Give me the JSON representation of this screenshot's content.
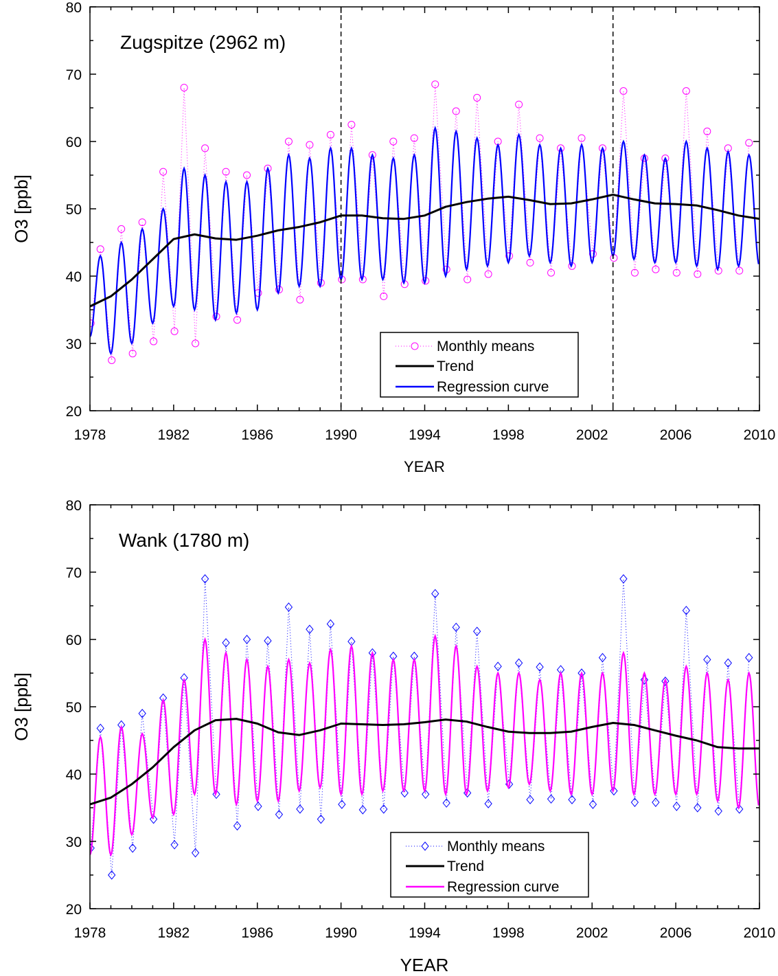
{
  "chart_data": [
    {
      "type": "line",
      "title": "Zugspitze (2962 m)",
      "xlabel": "YEAR",
      "ylabel": "O3 [ppb]",
      "xlim": [
        1978,
        2010
      ],
      "ylim": [
        20,
        80
      ],
      "xticks": [
        "1978",
        "1982",
        "1986",
        "1990",
        "1994",
        "1998",
        "2002",
        "2006",
        "2010"
      ],
      "yticks": [
        "20",
        "30",
        "40",
        "50",
        "60",
        "70",
        "80"
      ],
      "grid": false,
      "legend_placement": "bottom-center",
      "vertical_dashed_lines": [
        1990,
        2003
      ],
      "colors": {
        "monthly_means": "#ff00ff",
        "trend": "#000000",
        "regression": "#0000ff"
      },
      "legend": [
        "Monthly means",
        "Trend",
        "Regression curve"
      ],
      "years": [
        1978,
        1979,
        1980,
        1981,
        1982,
        1983,
        1984,
        1985,
        1986,
        1987,
        1988,
        1989,
        1990,
        1991,
        1992,
        1993,
        1994,
        1995,
        1996,
        1997,
        1998,
        1999,
        2000,
        2001,
        2002,
        2003,
        2004,
        2005,
        2006,
        2007,
        2008,
        2009
      ],
      "trend": {
        "x": [
          1978,
          1979,
          1980,
          1981,
          1982,
          1983,
          1984,
          1985,
          1986,
          1987,
          1988,
          1989,
          1990,
          1991,
          1992,
          1993,
          1994,
          1995,
          1996,
          1997,
          1998,
          1999,
          2000,
          2001,
          2002,
          2003,
          2004,
          2005,
          2006,
          2007,
          2008,
          2009,
          2010
        ],
        "y": [
          35.5,
          37,
          39.5,
          42.5,
          45.5,
          46.2,
          45.6,
          45.4,
          46,
          46.8,
          47.3,
          48,
          49,
          49,
          48.6,
          48.5,
          49,
          50.3,
          51,
          51.5,
          51.8,
          51.3,
          50.7,
          50.8,
          51.4,
          52.1,
          51.4,
          50.8,
          50.7,
          50.5,
          49.8,
          49,
          48.5
        ]
      },
      "regression_annual_max": [
        43,
        45,
        47,
        50,
        56,
        55,
        54,
        54,
        56,
        58,
        57.5,
        59,
        59,
        58,
        57.5,
        58,
        62,
        61.5,
        60.5,
        59.5,
        61,
        59.5,
        59,
        59.5,
        59,
        60,
        58,
        57.5,
        60,
        59,
        58.5,
        58
      ],
      "regression_annual_min": [
        31,
        28.5,
        30,
        33,
        35.5,
        35,
        33.5,
        34.5,
        35,
        37.5,
        38.5,
        38.5,
        39.5,
        39.5,
        39.5,
        39,
        39,
        40,
        41,
        41.5,
        42,
        43,
        42,
        41.5,
        42,
        43,
        42.5,
        42,
        42,
        41.5,
        41,
        41.5
      ],
      "monthly_means_annual_max": [
        44,
        47,
        48,
        55.5,
        68,
        59,
        55.5,
        55,
        56,
        60,
        59.5,
        61,
        62.5,
        58,
        60,
        60.5,
        68.5,
        64.5,
        66.5,
        60,
        65.5,
        60.5,
        59,
        60.5,
        59,
        67.5,
        57.5,
        57.5,
        67.5,
        61.5,
        59,
        59.8
      ],
      "monthly_means_annual_min": [
        33,
        27.5,
        28.5,
        30.3,
        31.8,
        30,
        34,
        33.5,
        37.5,
        38,
        36.5,
        39,
        39.5,
        39.5,
        37,
        38.8,
        39.3,
        41,
        39.5,
        40.3,
        43,
        42,
        40.5,
        41.5,
        43.3,
        42.7,
        40.5,
        41,
        40.5,
        40.3,
        40.8,
        40.8
      ]
    },
    {
      "type": "line",
      "title": "Wank (1780 m)",
      "xlabel": "YEAR",
      "ylabel": "O3 [ppb]",
      "xlim": [
        1978,
        2010
      ],
      "ylim": [
        20,
        80
      ],
      "xticks": [
        "1978",
        "1982",
        "1986",
        "1990",
        "1994",
        "1998",
        "2002",
        "2006",
        "2010"
      ],
      "yticks": [
        "20",
        "30",
        "40",
        "50",
        "60",
        "70",
        "80"
      ],
      "grid": false,
      "legend_placement": "bottom-center",
      "vertical_dashed_lines": [],
      "colors": {
        "monthly_means": "#0000ff",
        "trend": "#000000",
        "regression": "#ff00ff"
      },
      "legend": [
        "Monthly means",
        "Trend",
        "Regression curve"
      ],
      "years": [
        1978,
        1979,
        1980,
        1981,
        1982,
        1983,
        1984,
        1985,
        1986,
        1987,
        1988,
        1989,
        1990,
        1991,
        1992,
        1993,
        1994,
        1995,
        1996,
        1997,
        1998,
        1999,
        2000,
        2001,
        2002,
        2003,
        2004,
        2005,
        2006,
        2007,
        2008,
        2009
      ],
      "trend": {
        "x": [
          1978,
          1979,
          1980,
          1981,
          1982,
          1983,
          1984,
          1985,
          1986,
          1987,
          1988,
          1989,
          1990,
          1991,
          1992,
          1993,
          1994,
          1995,
          1996,
          1997,
          1998,
          1999,
          2000,
          2001,
          2002,
          2003,
          2004,
          2005,
          2006,
          2007,
          2008,
          2009,
          2010
        ],
        "y": [
          35.5,
          36.5,
          38.5,
          41,
          44,
          46.5,
          48,
          48.2,
          47.5,
          46.2,
          45.8,
          46.5,
          47.5,
          47.4,
          47.3,
          47.4,
          47.7,
          48.1,
          47.8,
          47,
          46.3,
          46.1,
          46.1,
          46.3,
          47,
          47.6,
          47.3,
          46.5,
          45.7,
          45,
          44,
          43.8,
          43.8
        ]
      },
      "regression_annual_max": [
        45.5,
        47,
        46,
        51,
        54,
        60,
        58,
        57,
        56,
        57,
        56.5,
        58.5,
        59,
        58,
        57,
        57,
        60.5,
        59,
        56,
        55,
        55,
        54,
        55,
        55,
        55,
        58,
        55,
        54,
        56,
        55,
        54,
        55
      ],
      "regression_annual_min": [
        28,
        28,
        31,
        33.5,
        34,
        37,
        37,
        35.5,
        36,
        36,
        37.5,
        38,
        37,
        37,
        37.5,
        37.5,
        37.5,
        37,
        37,
        37.5,
        38,
        38.5,
        37.5,
        37,
        37,
        37.5,
        37,
        37,
        37,
        37,
        36,
        35
      ],
      "monthly_means_annual_max": [
        46.8,
        47.3,
        49,
        51.3,
        54.3,
        69,
        59.5,
        60,
        59.8,
        64.8,
        61.5,
        62.3,
        59.7,
        58,
        57.5,
        57.5,
        66.8,
        61.8,
        61.2,
        56,
        56.5,
        55.9,
        55.5,
        55,
        57.3,
        69,
        54,
        53.8,
        64.3,
        57,
        56.5,
        57.3
      ],
      "monthly_means_annual_min": [
        29,
        25,
        29,
        33.3,
        29.5,
        28.3,
        37,
        32.3,
        35.2,
        34,
        34.8,
        33.3,
        35.5,
        34.7,
        34.8,
        37.2,
        37,
        35.7,
        37.2,
        35.6,
        38.5,
        36.2,
        36.3,
        36.2,
        35.5,
        37.5,
        35.8,
        35.8,
        35.2,
        35,
        34.5,
        34.8
      ]
    }
  ]
}
